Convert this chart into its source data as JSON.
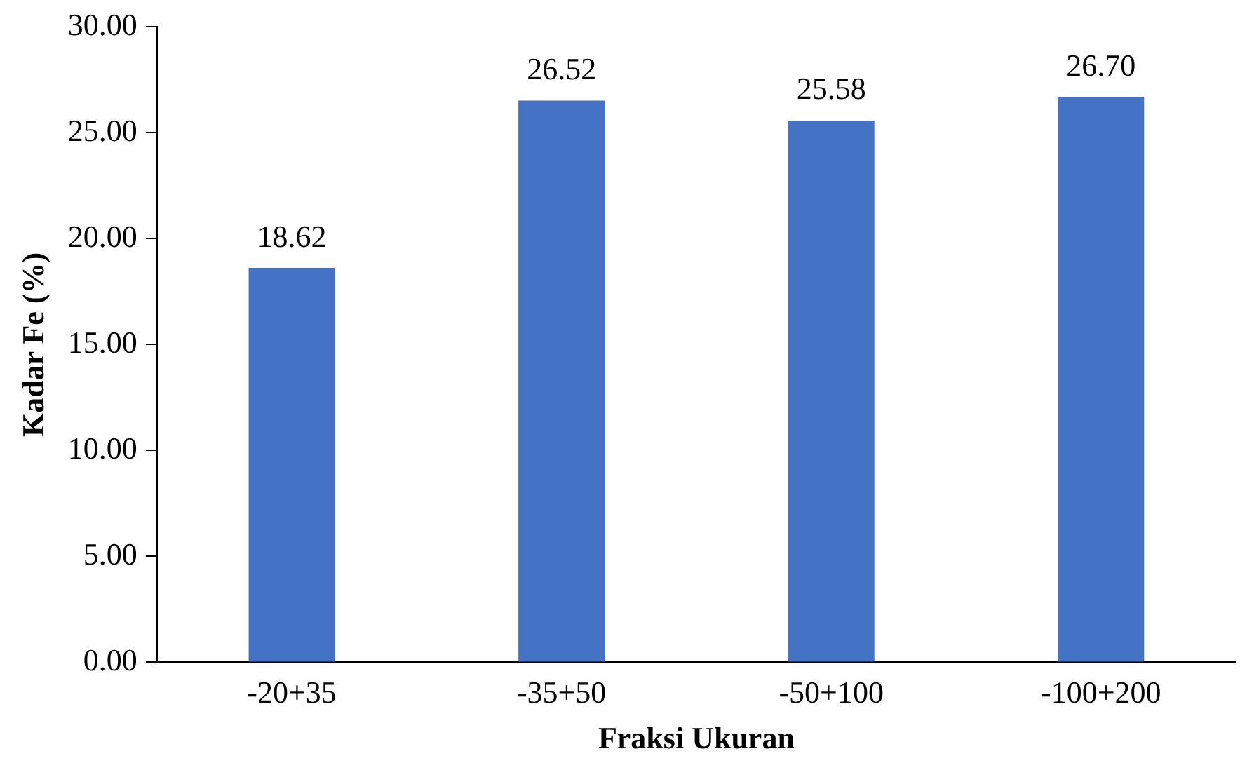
{
  "chart_data": {
    "type": "bar",
    "xlabel": "Fraksi Ukuran",
    "ylabel": "Kadar Fe (%)",
    "categories": [
      "-20+35",
      "-35+50",
      "-50+100",
      "-100+200"
    ],
    "values": [
      18.62,
      26.52,
      25.58,
      26.7
    ],
    "value_labels": [
      "18.62",
      "26.52",
      "25.58",
      "26.70"
    ],
    "color": "#4472c4",
    "ylim": [
      0,
      30
    ],
    "yticks": [
      {
        "value": 0,
        "label": "0.00"
      },
      {
        "value": 5,
        "label": "5.00"
      },
      {
        "value": 10,
        "label": "10.00"
      },
      {
        "value": 15,
        "label": "15.00"
      },
      {
        "value": 20,
        "label": "20.00"
      },
      {
        "value": 25,
        "label": "25.00"
      },
      {
        "value": 30,
        "label": "30.00"
      }
    ],
    "grid": false,
    "legend": false
  }
}
